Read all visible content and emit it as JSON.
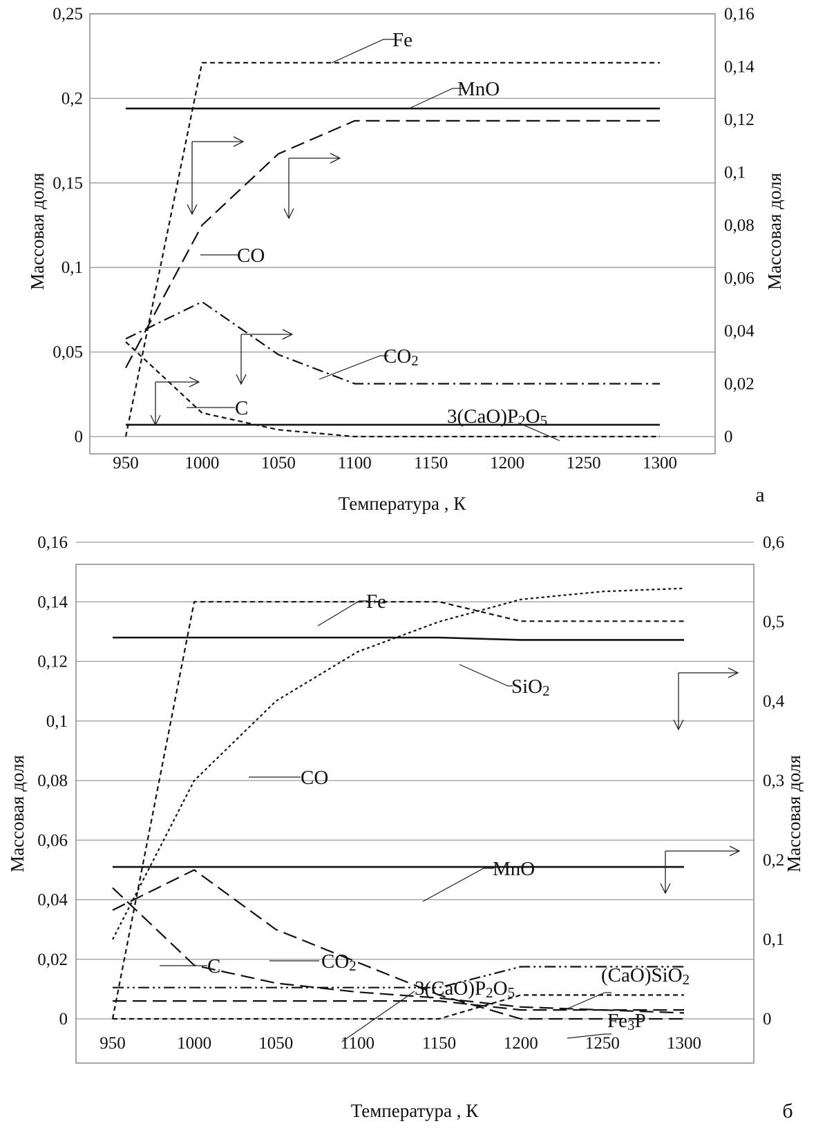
{
  "chart_data": [
    {
      "type": "line",
      "panel_label": "а",
      "xlabel": "Температура , К",
      "ylabel_left": "Массовая доля",
      "ylabel_right": "Массовая доля",
      "x_ticks": [
        "950",
        "1000",
        "1050",
        "1100",
        "1150",
        "1200",
        "1250",
        "1300"
      ],
      "xlim": [
        950,
        1300
      ],
      "ylim_left": [
        0,
        0.25
      ],
      "ylim_right": [
        0,
        0.16
      ],
      "y_ticks_left": [
        "0",
        "0,05",
        "0,1",
        "0,15",
        "0,2",
        "0,25"
      ],
      "y_ticks_right": [
        "0",
        "0,02",
        "0,04",
        "0,06",
        "0,08",
        "0,1",
        "0,12",
        "0,14",
        "0,16"
      ],
      "grid": "horizontal",
      "series": [
        {
          "name": "Fe",
          "axis": "right",
          "dash": "short",
          "x": [
            950,
            1000,
            1300
          ],
          "y": [
            0,
            0.1415,
            0.1415
          ]
        },
        {
          "name": "MnO",
          "axis": "left",
          "dash": "solid",
          "x": [
            950,
            1300
          ],
          "y": [
            0.194,
            0.194
          ]
        },
        {
          "name": "CO",
          "axis": "right",
          "dash": "long",
          "x": [
            950,
            1000,
            1050,
            1100,
            1300
          ],
          "y": [
            0.026,
            0.08,
            0.107,
            0.1195,
            0.1195
          ]
        },
        {
          "name": "CO2",
          "axis": "right",
          "dash": "dashdot",
          "x": [
            950,
            1000,
            1050,
            1100,
            1300
          ],
          "y": [
            0.037,
            0.051,
            0.031,
            0.02,
            0.02
          ]
        },
        {
          "name": "C",
          "axis": "left",
          "dash": "short",
          "x": [
            950,
            1000,
            1050,
            1100,
            1300
          ],
          "y": [
            0.056,
            0.014,
            0.004,
            0.0,
            0.0
          ]
        },
        {
          "name": "3(CaO)P2O5",
          "axis": "left",
          "dash": "solid",
          "x": [
            950,
            1300
          ],
          "y": [
            0.007,
            0.007
          ]
        }
      ],
      "labels": [
        "Fe",
        "MnO",
        "CO",
        "CO",
        "2",
        "C",
        "3(CaO)P",
        "2",
        "O",
        "5"
      ]
    },
    {
      "type": "line",
      "panel_label": "б",
      "xlabel": "Температура , К",
      "ylabel_left": "Массовая доля",
      "ylabel_right": "Массовая доля",
      "x_ticks": [
        "950",
        "1000",
        "1050",
        "1100",
        "1150",
        "1200",
        "1250",
        "1300"
      ],
      "xlim": [
        950,
        1300
      ],
      "ylim_left": [
        0,
        0.16
      ],
      "ylim_right": [
        0,
        0.6
      ],
      "y_ticks_left": [
        "0",
        "0,02",
        "0,04",
        "0,06",
        "0,08",
        "0,1",
        "0,12",
        "0,14",
        "0,16"
      ],
      "y_ticks_right": [
        "0",
        "0,1",
        "0,2",
        "0,3",
        "0,4",
        "0,5",
        "0,6"
      ],
      "grid": "horizontal",
      "series": [
        {
          "name": "Fe",
          "axis": "left",
          "dash": "short",
          "x": [
            950,
            1000,
            1150,
            1200,
            1300
          ],
          "y": [
            0,
            0.14,
            0.14,
            0.1335,
            0.1335
          ]
        },
        {
          "name": "SiO2",
          "axis": "right",
          "dash": "solid",
          "x": [
            950,
            1150,
            1200,
            1300
          ],
          "y": [
            0.48,
            0.48,
            0.477,
            0.477
          ]
        },
        {
          "name": "CO",
          "axis": "right",
          "dash": "dotted",
          "x": [
            950,
            1000,
            1050,
            1100,
            1150,
            1200,
            1250,
            1300
          ],
          "y": [
            0.1,
            0.3,
            0.4,
            0.462,
            0.5,
            0.528,
            0.538,
            0.542
          ]
        },
        {
          "name": "MnO",
          "axis": "left",
          "dash": "solid",
          "x": [
            950,
            1300
          ],
          "y": [
            0.051,
            0.051
          ]
        },
        {
          "name": "CO2",
          "axis": "left",
          "dash": "long",
          "x": [
            950,
            1000,
            1050,
            1100,
            1150,
            1200,
            1300
          ],
          "y": [
            0.0365,
            0.05,
            0.03,
            0.019,
            0.008,
            0.0,
            0.0
          ]
        },
        {
          "name": "C",
          "axis": "left",
          "dash": "long",
          "x": [
            950,
            1000,
            1050,
            1100,
            1150,
            1200,
            1250,
            1300
          ],
          "y": [
            0.044,
            0.018,
            0.012,
            0.009,
            0.007,
            0.004,
            0.003,
            0.002
          ]
        },
        {
          "name": "3(CaO)P2O5",
          "axis": "left",
          "dash": "long",
          "x": [
            950,
            1150,
            1200,
            1300
          ],
          "y": [
            0.006,
            0.006,
            0.003,
            0.003
          ]
        },
        {
          "name": "(CaO)SiO2",
          "axis": "left",
          "dash": "dashdotdot",
          "x": [
            950,
            1150,
            1200,
            1300
          ],
          "y": [
            0.0105,
            0.0105,
            0.0175,
            0.0175
          ]
        },
        {
          "name": "Fe3P",
          "axis": "left",
          "dash": "short",
          "x": [
            950,
            1150,
            1200,
            1300
          ],
          "y": [
            0.0,
            0.0,
            0.008,
            0.008
          ]
        }
      ],
      "labels": [
        "Fe",
        "SiO",
        "2",
        "CO",
        "MnO",
        "CO",
        "2",
        "C",
        "3(CaO)P",
        "2",
        "O",
        "5",
        "(CaO)SiO",
        "2",
        "Fe",
        "3",
        "P"
      ]
    }
  ]
}
